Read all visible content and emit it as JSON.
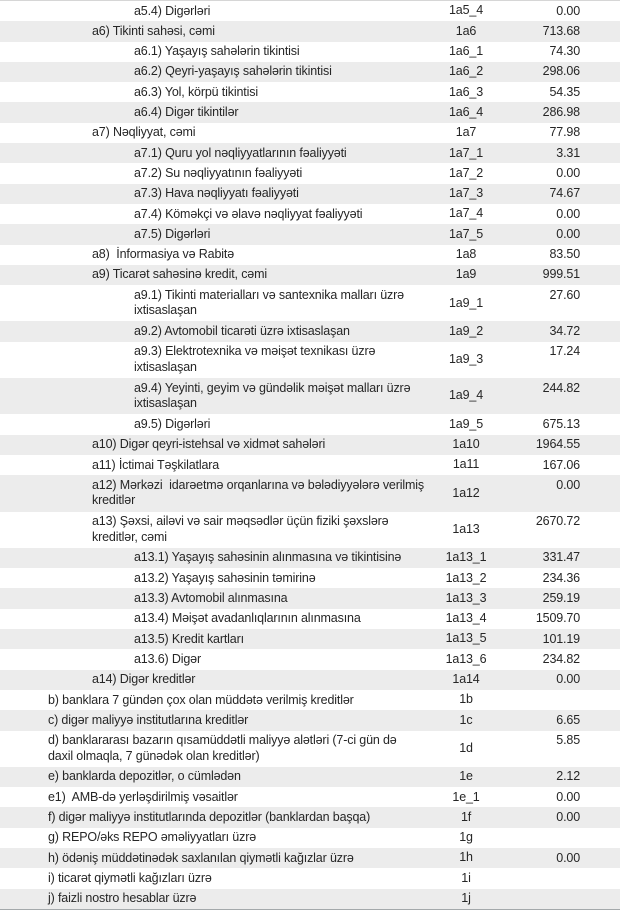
{
  "colors": {
    "stripe": "#ececec",
    "text": "#262626",
    "border_top": "#d6d6d6",
    "border_bottom": "#a4a9ab"
  },
  "table": {
    "columns": [
      "label",
      "code",
      "value"
    ],
    "rows": [
      {
        "indent": 3,
        "lines": [
          "a5.4) Digərləri"
        ],
        "code": "1a5_4",
        "value": "0.00"
      },
      {
        "indent": 2,
        "lines": [
          "a6) Tikinti sahəsi, cəmi"
        ],
        "code": "1a6",
        "value": "713.68"
      },
      {
        "indent": 3,
        "lines": [
          "a6.1) Yaşayış sahələrin tikintisi"
        ],
        "code": "1a6_1",
        "value": "74.30"
      },
      {
        "indent": 3,
        "lines": [
          "a6.2) Qeyri-yaşayış sahələrin tikintisi"
        ],
        "code": "1a6_2",
        "value": "298.06"
      },
      {
        "indent": 3,
        "lines": [
          "a6.3) Yol, körpü tikintisi"
        ],
        "code": "1a6_3",
        "value": "54.35"
      },
      {
        "indent": 3,
        "lines": [
          "a6.4) Digər tikintilər"
        ],
        "code": "1a6_4",
        "value": "286.98"
      },
      {
        "indent": 2,
        "lines": [
          "a7) Nəqliyyat, cəmi"
        ],
        "code": "1a7",
        "value": "77.98"
      },
      {
        "indent": 3,
        "lines": [
          "a7.1) Quru yol nəqliyyatlarının fəaliyyəti"
        ],
        "code": "1a7_1",
        "value": "3.31"
      },
      {
        "indent": 3,
        "lines": [
          "a7.2) Su nəqliyyatının fəaliyyəti"
        ],
        "code": "1a7_2",
        "value": "0.00"
      },
      {
        "indent": 3,
        "lines": [
          "a7.3) Hava nəqliyyatı fəaliyyəti"
        ],
        "code": "1a7_3",
        "value": "74.67"
      },
      {
        "indent": 3,
        "lines": [
          "a7.4) Köməkçi və əlavə nəqliyyat fəaliyyəti"
        ],
        "code": "1a7_4",
        "value": "0.00"
      },
      {
        "indent": 3,
        "lines": [
          "a7.5) Digərləri"
        ],
        "code": "1a7_5",
        "value": "0.00"
      },
      {
        "indent": 2,
        "lines": [
          "a8)  İnformasiya və Rabitə"
        ],
        "code": "1a8",
        "value": "83.50"
      },
      {
        "indent": 2,
        "lines": [
          "a9) Ticarət sahəsinə kredit, cəmi"
        ],
        "code": "1a9",
        "value": "999.51"
      },
      {
        "indent": 3,
        "lines": [
          "a9.1) Tikinti materialları və santexnika malları üzrə",
          "ixtisaslaşan"
        ],
        "code": "1a9_1",
        "value": "27.60"
      },
      {
        "indent": 3,
        "lines": [
          "a9.2) Avtomobil ticarəti üzrə ixtisaslaşan"
        ],
        "code": "1a9_2",
        "value": "34.72"
      },
      {
        "indent": 3,
        "lines": [
          "a9.3) Elektrotexnika və məişət texnikası üzrə",
          "ixtisaslaşan"
        ],
        "code": "1a9_3",
        "value": "17.24"
      },
      {
        "indent": 3,
        "lines": [
          "a9.4) Yeyinti, geyim və gündəlik məişət malları üzrə",
          "ixtisaslaşan"
        ],
        "code": "1a9_4",
        "value": "244.82"
      },
      {
        "indent": 3,
        "lines": [
          "a9.5) Digərləri"
        ],
        "code": "1a9_5",
        "value": "675.13"
      },
      {
        "indent": 2,
        "lines": [
          "a10) Digər qeyri-istehsal və xidmət sahələri"
        ],
        "code": "1a10",
        "value": "1964.55"
      },
      {
        "indent": 2,
        "lines": [
          "a11) İctimai Təşkilatlara"
        ],
        "code": "1a11",
        "value": "167.06"
      },
      {
        "indent": 2,
        "lines": [
          "a12) Mərkəzi  idarəetmə orqanlarına və bələdiyyələrə verilmiş",
          "kreditlər"
        ],
        "code": "1a12",
        "value": "0.00"
      },
      {
        "indent": 2,
        "lines": [
          "a13) Şəxsi, ailəvi və sair məqsədlər üçün fiziki şəxslərə",
          "kreditlər, cəmi"
        ],
        "code": "1a13",
        "value": "2670.72"
      },
      {
        "indent": 3,
        "lines": [
          "a13.1) Yaşayış sahəsinin alınmasına və tikintisinə"
        ],
        "code": "1a13_1",
        "value": "331.47"
      },
      {
        "indent": 3,
        "lines": [
          "a13.2) Yaşayış sahəsinin təmirinə"
        ],
        "code": "1a13_2",
        "value": "234.36"
      },
      {
        "indent": 3,
        "lines": [
          "a13.3) Avtomobil alınmasına"
        ],
        "code": "1a13_3",
        "value": "259.19"
      },
      {
        "indent": 3,
        "lines": [
          "a13.4) Məişət avadanlıqlarının alınmasına"
        ],
        "code": "1a13_4",
        "value": "1509.70"
      },
      {
        "indent": 3,
        "lines": [
          "a13.5) Kredit kartları"
        ],
        "code": "1a13_5",
        "value": "101.19"
      },
      {
        "indent": 3,
        "lines": [
          "a13.6) Digər"
        ],
        "code": "1a13_6",
        "value": "234.82"
      },
      {
        "indent": 2,
        "lines": [
          "a14) Digər kreditlər"
        ],
        "code": "1a14",
        "value": "0.00"
      },
      {
        "indent": 1,
        "lines": [
          "b) banklara 7 gündən çox olan müddətə verilmiş kreditlər"
        ],
        "code": "1b",
        "value": ""
      },
      {
        "indent": 1,
        "lines": [
          "c) digər maliyyə institutlarına kreditlər"
        ],
        "code": "1c",
        "value": "6.65"
      },
      {
        "indent": 1,
        "lines": [
          "d) banklararası bazarın qısamüddətli maliyyə alətləri (7-ci gün də",
          "daxil olmaqla, 7 günədək olan kreditlər)"
        ],
        "code": "1d",
        "value": "5.85"
      },
      {
        "indent": 1,
        "lines": [
          "e) banklarda depozitlər, o cümlədən"
        ],
        "code": "1e",
        "value": "2.12"
      },
      {
        "indent": 1,
        "lines": [
          "e1)  AMB-də yerləşdirilmiş vəsaitlər"
        ],
        "code": "1e_1",
        "value": "0.00"
      },
      {
        "indent": 1,
        "lines": [
          "f) digər maliyyə institutlarında depozitlər (banklardan başqa)"
        ],
        "code": "1f",
        "value": "0.00"
      },
      {
        "indent": 1,
        "lines": [
          "g) REPO/əks REPO əməliyyatları üzrə"
        ],
        "code": "1g",
        "value": ""
      },
      {
        "indent": 1,
        "lines": [
          "h) ödəniş müddətinədək saxlanılan qiymətli kağızlar üzrə"
        ],
        "code": "1h",
        "value": "0.00"
      },
      {
        "indent": 1,
        "lines": [
          "i) ticarət qiymətli kağızları üzrə"
        ],
        "code": "1i",
        "value": ""
      },
      {
        "indent": 1,
        "lines": [
          "j) faizli nostro hesablar üzrə"
        ],
        "code": "1j",
        "value": ""
      }
    ]
  }
}
